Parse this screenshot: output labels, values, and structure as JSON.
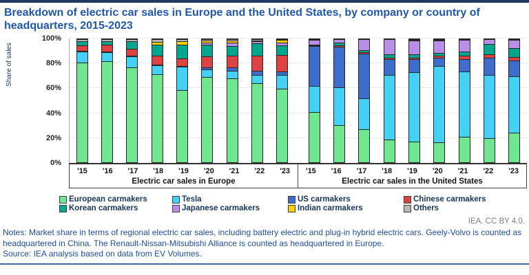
{
  "page": {
    "title": "Breakdown of electric car sales in Europe and the United States, by company or country of headquarters, 2015-2023",
    "attribution": "IEA. CC BY 4.0.",
    "notes": "Notes: Market share in terms of regional electric car sales, including battery electric and plug-in hybrid electric cars. Geely-Volvo is counted as headquartered in China. The Renault-Nissan-Mitsubishi Alliance is counted as headquartered in Europe.",
    "source": "Source: IEA analysis based on data from EV Volumes.",
    "accent_colors": {
      "top_border": "#1F3864",
      "title_text": "#2057A8",
      "notes_text": "#1F4E9E",
      "bottom_rule": "#3A6A9E"
    }
  },
  "chart_data": {
    "type": "bar",
    "stacked": true,
    "ylabel": "Share of sales",
    "ylim": [
      0,
      100
    ],
    "grid": true,
    "legend_position": "bottom",
    "yticks": [
      {
        "label": "0%",
        "value": 0
      },
      {
        "label": "20%",
        "value": 20
      },
      {
        "label": "40%",
        "value": 40
      },
      {
        "label": "60%",
        "value": 60
      },
      {
        "label": "80%",
        "value": 80
      },
      {
        "label": "100%",
        "value": 100
      }
    ],
    "categories": [
      "'15",
      "'16",
      "'17",
      "'18",
      "'19",
      "'20",
      "'21",
      "'22",
      "'23"
    ],
    "groups": [
      {
        "id": "europe",
        "label": "Electric car sales in Europe"
      },
      {
        "id": "united-states",
        "label": "Electric car sales in the United States"
      }
    ],
    "series": [
      {
        "name": "European carmakers",
        "color": "#6FE68F",
        "values": [
          [
            81,
            82,
            77,
            71.5,
            58.5,
            69.5,
            68,
            64.5,
            60
          ],
          [
            41,
            30,
            27,
            18.5,
            17,
            16,
            20.5,
            19.5,
            24
          ]
        ]
      },
      {
        "name": "Tesla",
        "color": "#45D1F5",
        "values": [
          [
            9,
            7.5,
            9,
            7.5,
            19,
            6,
            6.5,
            6.5,
            11
          ],
          [
            21,
            31,
            25,
            52.5,
            56,
            62,
            53,
            51.5,
            46
          ]
        ]
      },
      {
        "name": "US carmakers",
        "color": "#3E6DCC",
        "values": [
          [
            0.5,
            0.5,
            0.5,
            0.5,
            0.5,
            1.5,
            2.5,
            3.5,
            3
          ],
          [
            32.5,
            33,
            36.5,
            13,
            11,
            7,
            10.5,
            14,
            12.5
          ]
        ]
      },
      {
        "name": "Chinese carmakers",
        "color": "#DE4343",
        "values": [
          [
            4.5,
            5.5,
            5.5,
            7,
            6.5,
            9,
            9.5,
            12,
            13
          ],
          [
            0.5,
            1,
            1,
            1,
            1,
            1.5,
            2.5,
            2.5,
            3
          ]
        ]
      },
      {
        "name": "Korean carmakers",
        "color": "#00A78E",
        "values": [
          [
            3.5,
            3,
            6,
            9,
            11,
            9.5,
            8,
            10,
            8
          ],
          [
            0.5,
            2.5,
            1.5,
            2.5,
            2.5,
            2.5,
            3.5,
            8.5,
            7.5
          ]
        ]
      },
      {
        "name": "Japanese carmakers",
        "color": "#B78FE6",
        "values": [
          [
            0,
            0,
            0,
            0,
            0,
            1.5,
            3,
            2,
            2.5
          ],
          [
            4,
            2.5,
            9,
            12.5,
            11.5,
            10,
            9.5,
            4,
            6.5
          ]
        ]
      },
      {
        "name": "Indian carmakers",
        "color": "#FFD100",
        "values": [
          [
            0,
            0,
            0,
            2,
            3,
            2,
            1.5,
            0.5,
            2
          ],
          [
            0,
            0,
            0,
            0,
            0.5,
            0.5,
            0,
            0,
            0
          ]
        ]
      },
      {
        "name": "Others",
        "color": "#B8B8B8",
        "values": [
          [
            1.5,
            1.5,
            2,
            2.5,
            1.5,
            1,
            1,
            1,
            0.5
          ],
          [
            0.5,
            0,
            0,
            0,
            0.5,
            0.5,
            0.5,
            0,
            0.5
          ]
        ]
      }
    ]
  }
}
